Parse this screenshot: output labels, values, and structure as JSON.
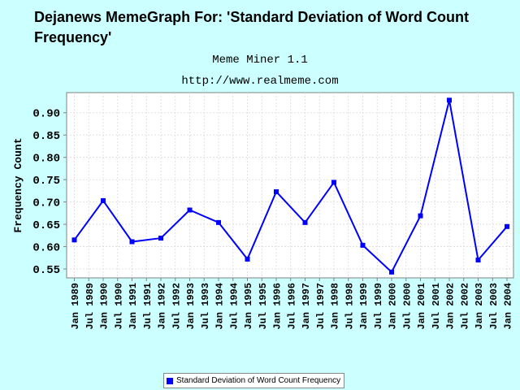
{
  "title": "Dejanews MemeGraph For: 'Standard Deviation of Word Count Frequency'",
  "subtitle_lines": [
    "Meme Miner 1.1",
    "http://www.realmeme.com"
  ],
  "colors": {
    "background": "#ccffff",
    "plot_background": "#ffffff",
    "series": "#0000ff",
    "grid": "#d9d9d9"
  },
  "chart_data": {
    "type": "line",
    "title": "Dejanews MemeGraph For: 'Standard Deviation of Word Count Frequency'",
    "xlabel": "",
    "ylabel": "Frequency Count",
    "x_ticks": [
      "Jan 1989",
      "Jul 1989",
      "Jan 1990",
      "Jul 1990",
      "Jan 1991",
      "Jul 1991",
      "Jan 1992",
      "Jul 1992",
      "Jan 1993",
      "Jul 1993",
      "Jan 1994",
      "Jul 1994",
      "Jan 1995",
      "Jul 1995",
      "Jan 1996",
      "Jul 1996",
      "Jan 1997",
      "Jul 1997",
      "Jan 1998",
      "Jul 1998",
      "Jan 1999",
      "Jul 1999",
      "Jan 2000",
      "Jul 2000",
      "Jan 2001",
      "Jul 2001",
      "Jan 2002",
      "Jul 2002",
      "Jan 2003",
      "Jul 2003",
      "Jan 2004"
    ],
    "y_ticks": [
      0.55,
      0.6,
      0.65,
      0.7,
      0.75,
      0.8,
      0.85,
      0.9
    ],
    "ylim": [
      0.53,
      0.945
    ],
    "grid": true,
    "legend": "bottom",
    "series": [
      {
        "name": "Standard Deviation of Word Count Frequency",
        "x": [
          "Jan 1989",
          "Jan 1990",
          "Jan 1991",
          "Jan 1992",
          "Jan 1993",
          "Jan 1994",
          "Jan 1995",
          "Jan 1996",
          "Jan 1997",
          "Jan 1998",
          "Jan 1999",
          "Jan 2000",
          "Jan 2001",
          "Jan 2002",
          "Jan 2003",
          "Jan 2004"
        ],
        "values": [
          0.615,
          0.703,
          0.611,
          0.619,
          0.682,
          0.654,
          0.572,
          0.723,
          0.654,
          0.744,
          0.603,
          0.543,
          0.669,
          0.928,
          0.57,
          0.645
        ]
      }
    ]
  }
}
